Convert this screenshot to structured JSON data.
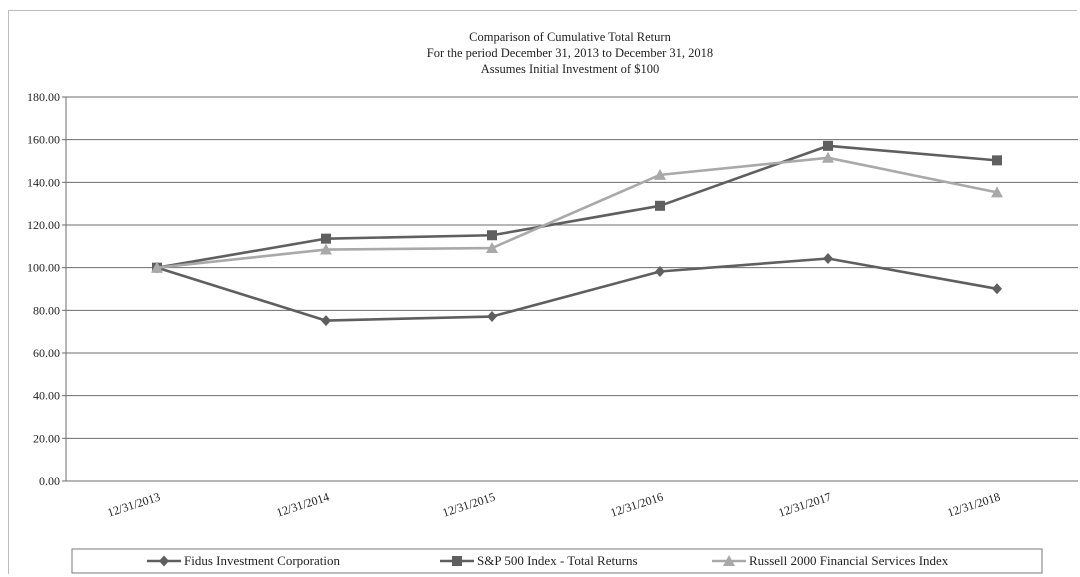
{
  "chart_data": {
    "type": "line",
    "title": "Comparison of Cumulative Total Return",
    "subtitle": "For the period December 31, 2013 to December 31, 2018",
    "subtitle2": "Assumes Initial Investment of $100",
    "categories": [
      "12/31/2013",
      "12/31/2014",
      "12/31/2015",
      "12/31/2016",
      "12/31/2017",
      "12/31/2018"
    ],
    "ylim": [
      0,
      180
    ],
    "yticks": [
      "0.00",
      "20.00",
      "40.00",
      "60.00",
      "80.00",
      "100.00",
      "120.00",
      "140.00",
      "160.00",
      "180.00"
    ],
    "grid": true,
    "legend_position": "bottom",
    "series": [
      {
        "name": "Fidus Investment Corporation",
        "values": [
          100.0,
          75.2,
          77.1,
          98.2,
          104.3,
          90.1
        ],
        "color": "#5f5f5f",
        "marker": "diamond"
      },
      {
        "name": "S&P 500 Index - Total Returns",
        "values": [
          100.0,
          113.6,
          115.2,
          129.0,
          157.1,
          150.3
        ],
        "color": "#5f5f5f",
        "marker": "square"
      },
      {
        "name": "Russell 2000 Financial Services Index",
        "values": [
          100.0,
          108.5,
          109.2,
          143.5,
          151.5,
          135.3
        ],
        "color": "#a9a9a9",
        "marker": "triangle"
      }
    ]
  }
}
